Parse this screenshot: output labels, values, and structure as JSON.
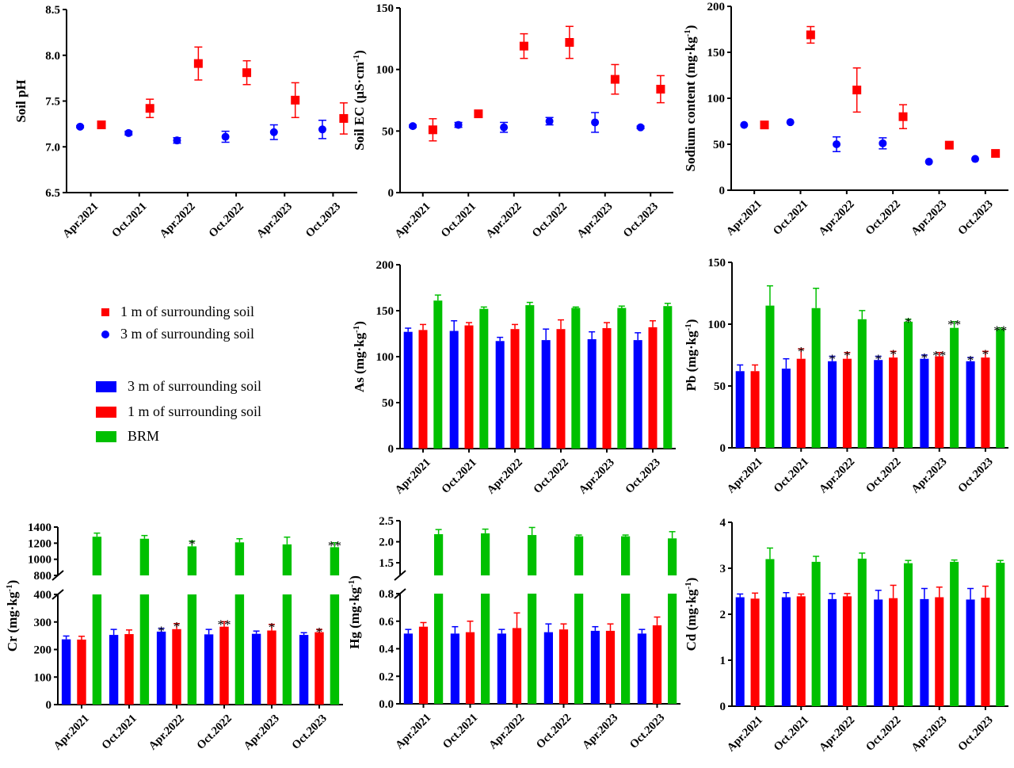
{
  "legends": {
    "scatter": [
      {
        "label": "1 m of surrounding soil",
        "color": "#ff0000",
        "marker": "square"
      },
      {
        "label": "3 m of surrounding soil",
        "color": "#0000ff",
        "marker": "circle"
      }
    ],
    "bar": [
      {
        "label": "3 m of surrounding soil",
        "color": "#0000ff"
      },
      {
        "label": "1 m of surrounding soil",
        "color": "#ff0000"
      },
      {
        "label": "BRM",
        "color": "#00c000"
      }
    ]
  },
  "chart_data": [
    {
      "type": "scatter",
      "ylabel": "Soil pH",
      "categories": [
        "Apr.2021",
        "Oct.2021",
        "Apr.2022",
        "Oct.2022",
        "Apr.2023",
        "Oct.2023"
      ],
      "ylim": [
        6.5,
        8.5
      ],
      "yticks": [
        "6.5",
        "7.0",
        "7.5",
        "8.0",
        "8.5"
      ],
      "series": [
        {
          "name": "3 m of surrounding soil",
          "color": "#0000ff",
          "values": [
            7.22,
            7.15,
            7.07,
            7.11,
            7.16,
            7.19
          ],
          "errors": [
            0.01,
            0.02,
            0.03,
            0.06,
            0.08,
            0.1
          ]
        },
        {
          "name": "1 m of surrounding soil",
          "color": "#ff0000",
          "values": [
            7.24,
            7.42,
            7.91,
            7.81,
            7.51,
            7.31
          ],
          "errors": [
            0.01,
            0.1,
            0.18,
            0.13,
            0.19,
            0.17
          ]
        }
      ]
    },
    {
      "type": "scatter",
      "ylabel": "Soil EC (μS·cm-1)",
      "categories": [
        "Apr.2021",
        "Oct.2021",
        "Apr.2022",
        "Oct.2022",
        "Apr.2023",
        "Oct.2023"
      ],
      "ylim": [
        0,
        150
      ],
      "yticks": [
        "0",
        "50",
        "100",
        "150"
      ],
      "series": [
        {
          "name": "3 m of surrounding soil",
          "color": "#0000ff",
          "values": [
            54,
            55,
            53,
            58,
            57,
            53
          ],
          "errors": [
            1,
            2,
            4,
            3,
            8,
            1
          ]
        },
        {
          "name": "1 m of surrounding soil",
          "color": "#ff0000",
          "values": [
            51,
            64,
            119,
            122,
            92,
            84
          ],
          "errors": [
            9,
            1,
            10,
            13,
            12,
            11
          ]
        }
      ]
    },
    {
      "type": "scatter",
      "ylabel": "Sodium content (mg·kg-1)",
      "categories": [
        "Apr.2021",
        "Oct.2021",
        "Apr.2022",
        "Oct.2022",
        "Apr.2023",
        "Oct.2023"
      ],
      "ylim": [
        0,
        200
      ],
      "yticks": [
        "0",
        "50",
        "100",
        "150",
        "200"
      ],
      "series": [
        {
          "name": "3 m of surrounding soil",
          "color": "#0000ff",
          "values": [
            71,
            74,
            50,
            51,
            31,
            34
          ],
          "errors": [
            0,
            0,
            8,
            6,
            0,
            0
          ]
        },
        {
          "name": "1 m of surrounding soil",
          "color": "#ff0000",
          "values": [
            71,
            169,
            109,
            80,
            49,
            40
          ],
          "errors": [
            0,
            9,
            24,
            13,
            0,
            0
          ]
        }
      ]
    },
    {
      "type": "bar",
      "ylabel": "As (mg·kg-1)",
      "categories": [
        "Apr.2021",
        "Oct.2021",
        "Apr.2022",
        "Oct.2022",
        "Apr.2023",
        "Oct.2023"
      ],
      "ylim": [
        0,
        200
      ],
      "yticks": [
        "0",
        "50",
        "100",
        "150",
        "200"
      ],
      "series": [
        {
          "name": "3 m of surrounding soil",
          "color": "#0000ff",
          "values": [
            127,
            128,
            117,
            118,
            119,
            118
          ],
          "errors": [
            4,
            11,
            4,
            12,
            8,
            8
          ],
          "stars": [
            "",
            "",
            "",
            "",
            "",
            ""
          ]
        },
        {
          "name": "1 m of surrounding soil",
          "color": "#ff0000",
          "values": [
            129,
            134,
            130,
            130,
            131,
            132
          ],
          "errors": [
            6,
            3,
            5,
            10,
            6,
            7
          ],
          "stars": [
            "",
            "",
            "",
            "",
            "",
            ""
          ]
        },
        {
          "name": "BRM",
          "color": "#00c000",
          "values": [
            161,
            152,
            156,
            153,
            153,
            155
          ],
          "errors": [
            6,
            2,
            3,
            1,
            2,
            3
          ],
          "stars": [
            "",
            "",
            "",
            "",
            "",
            ""
          ]
        }
      ]
    },
    {
      "type": "bar",
      "ylabel": "Pb (mg·kg-1)",
      "categories": [
        "Apr.2021",
        "Oct.2021",
        "Apr.2022",
        "Oct.2022",
        "Apr.2023",
        "Oct.2023"
      ],
      "ylim": [
        0,
        150
      ],
      "yticks": [
        "0",
        "50",
        "100",
        "150"
      ],
      "series": [
        {
          "name": "3 m of surrounding soil",
          "color": "#0000ff",
          "values": [
            62,
            64,
            70,
            71,
            72,
            70
          ],
          "errors": [
            5,
            8,
            4,
            3,
            3,
            3
          ],
          "stars": [
            "",
            "",
            "*",
            "*",
            "*",
            "*"
          ]
        },
        {
          "name": "1 m of surrounding soil",
          "color": "#ff0000",
          "values": [
            62,
            72,
            72,
            73,
            74,
            73
          ],
          "errors": [
            5,
            8,
            5,
            5,
            3,
            5
          ],
          "stars": [
            "",
            "*",
            "*",
            "*",
            "**",
            "*"
          ]
        },
        {
          "name": "BRM",
          "color": "#00c000",
          "values": [
            115,
            113,
            104,
            102,
            97,
            96
          ],
          "errors": [
            16,
            16,
            7,
            2,
            5,
            1
          ],
          "stars": [
            "",
            "",
            "",
            "*",
            "**",
            "**"
          ]
        }
      ]
    },
    {
      "type": "bar",
      "ylabel": "Cr (mg·kg-1)",
      "categories": [
        "Apr.2021",
        "Oct.2021",
        "Apr.2022",
        "Oct.2022",
        "Apr.2023",
        "Oct.2023"
      ],
      "broken_axis": {
        "lower": [
          0,
          400
        ],
        "upper": [
          800,
          1400
        ]
      },
      "yticks": [
        "0",
        "100",
        "200",
        "300",
        "400",
        "800",
        "1000",
        "1200",
        "1400"
      ],
      "series": [
        {
          "name": "3 m of surrounding soil",
          "color": "#0000ff",
          "values": [
            237,
            253,
            265,
            255,
            257,
            253
          ],
          "errors": [
            12,
            20,
            12,
            18,
            10,
            8
          ],
          "stars": [
            "",
            "",
            "*",
            "",
            "",
            ""
          ]
        },
        {
          "name": "1 m of surrounding soil",
          "color": "#ff0000",
          "values": [
            236,
            256,
            274,
            283,
            269,
            263
          ],
          "errors": [
            12,
            15,
            20,
            18,
            22,
            10
          ],
          "stars": [
            "",
            "",
            "*",
            "**",
            "*",
            "*"
          ]
        },
        {
          "name": "BRM",
          "color": "#00c000",
          "values": [
            1280,
            1255,
            1160,
            1210,
            1185,
            1150
          ],
          "errors": [
            45,
            40,
            65,
            45,
            90,
            55
          ],
          "stars": [
            "",
            "",
            "*",
            "",
            "",
            "**"
          ]
        }
      ]
    },
    {
      "type": "bar",
      "ylabel": "Hg (mg·kg-1)",
      "categories": [
        "Apr.2021",
        "Oct.2021",
        "Apr.2022",
        "Oct.2022",
        "Apr.2023",
        "Oct.2023"
      ],
      "broken_axis": {
        "lower": [
          0,
          0.8
        ],
        "upper": [
          1.2,
          2.5
        ]
      },
      "yticks": [
        "0.0",
        "0.2",
        "0.4",
        "0.6",
        "0.8",
        "1.5",
        "2.0",
        "2.5"
      ],
      "series": [
        {
          "name": "3 m of surrounding soil",
          "color": "#0000ff",
          "values": [
            0.51,
            0.51,
            0.51,
            0.52,
            0.53,
            0.51
          ],
          "errors": [
            0.03,
            0.05,
            0.03,
            0.06,
            0.03,
            0.03
          ],
          "stars": [
            "",
            "",
            "",
            "",
            "",
            ""
          ]
        },
        {
          "name": "1 m of surrounding soil",
          "color": "#ff0000",
          "values": [
            0.56,
            0.52,
            0.55,
            0.54,
            0.53,
            0.57
          ],
          "errors": [
            0.03,
            0.08,
            0.11,
            0.04,
            0.05,
            0.06
          ],
          "stars": [
            "",
            "",
            "",
            "",
            "",
            ""
          ]
        },
        {
          "name": "BRM",
          "color": "#00c000",
          "values": [
            2.18,
            2.2,
            2.16,
            2.13,
            2.13,
            2.08
          ],
          "errors": [
            0.11,
            0.1,
            0.18,
            0.03,
            0.03,
            0.16
          ],
          "stars": [
            "",
            "",
            "",
            "",
            "",
            ""
          ]
        }
      ]
    },
    {
      "type": "bar",
      "ylabel": "Cd (mg·kg-1)",
      "categories": [
        "Apr.2021",
        "Oct.2021",
        "Apr.2022",
        "Oct.2022",
        "Apr.2023",
        "Oct.2023"
      ],
      "ylim": [
        0,
        4
      ],
      "yticks": [
        "0",
        "1",
        "2",
        "3",
        "4"
      ],
      "series": [
        {
          "name": "3 m of surrounding soil",
          "color": "#0000ff",
          "values": [
            2.37,
            2.37,
            2.33,
            2.32,
            2.33,
            2.32
          ],
          "errors": [
            0.07,
            0.1,
            0.12,
            0.2,
            0.23,
            0.24
          ],
          "stars": [
            "",
            "",
            "",
            "",
            "",
            ""
          ]
        },
        {
          "name": "1 m of surrounding soil",
          "color": "#ff0000",
          "values": [
            2.34,
            2.39,
            2.39,
            2.35,
            2.37,
            2.36
          ],
          "errors": [
            0.12,
            0.05,
            0.06,
            0.28,
            0.22,
            0.25
          ],
          "stars": [
            "",
            "",
            "",
            "",
            "",
            ""
          ]
        },
        {
          "name": "BRM",
          "color": "#00c000",
          "values": [
            3.2,
            3.14,
            3.21,
            3.11,
            3.14,
            3.12
          ],
          "errors": [
            0.24,
            0.12,
            0.12,
            0.06,
            0.04,
            0.05
          ],
          "stars": [
            "",
            "",
            "",
            "",
            "",
            ""
          ]
        }
      ]
    }
  ]
}
